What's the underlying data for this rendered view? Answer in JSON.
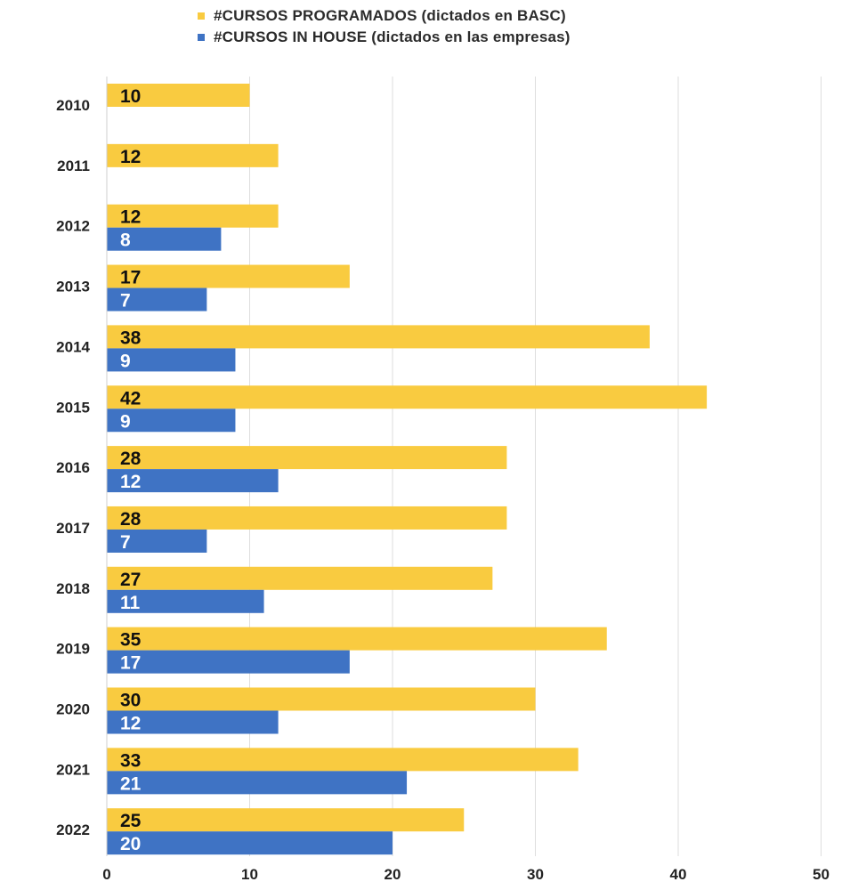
{
  "chart_data": {
    "type": "bar",
    "orientation": "horizontal",
    "categories": [
      "2010",
      "2011",
      "2012",
      "2013",
      "2014",
      "2015",
      "2016",
      "2017",
      "2018",
      "2019",
      "2020",
      "2021",
      "2022"
    ],
    "series": [
      {
        "name": "#CURSOS PROGRAMADOS (dictados en BASC)",
        "color": "#F9CB40",
        "label_color": "#111111",
        "values": [
          10,
          12,
          12,
          17,
          38,
          42,
          28,
          28,
          27,
          35,
          30,
          33,
          25
        ]
      },
      {
        "name": "#CURSOS IN HOUSE (dictados en las empresas)",
        "color": "#3F73C4",
        "label_color": "#ffffff",
        "values": [
          null,
          null,
          8,
          7,
          9,
          9,
          12,
          7,
          11,
          17,
          12,
          21,
          20
        ]
      }
    ],
    "xlim": [
      0,
      50
    ],
    "xticks": [
      "0",
      "10",
      "20",
      "30",
      "40",
      "50"
    ],
    "grid": true,
    "legend_position": "top"
  }
}
